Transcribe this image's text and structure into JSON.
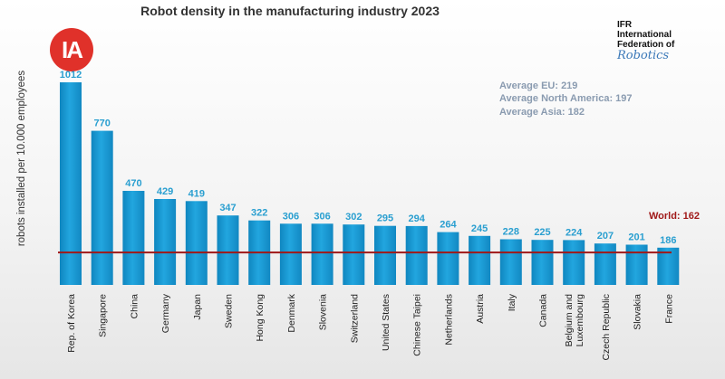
{
  "logo": {
    "text": "IA"
  },
  "ifr_logo": {
    "line1": "IFR",
    "line2": "International",
    "line3": "Federation of",
    "line4": "Robotics"
  },
  "annotations": {
    "avg_eu": "Average EU: 219",
    "avg_na": "Average North America: 197",
    "avg_asia": "Average Asia: 182",
    "world": "World: 162"
  },
  "colors": {
    "bar": "#1a9ad2",
    "world_line": "#a01818",
    "data_label": "#2a9fd0"
  },
  "chart_data": {
    "type": "bar",
    "title": "Robot density in the manufacturing industry 2023",
    "ylabel": "robots installed per 10.000 employees",
    "xlabel": "",
    "ylim": [
      0,
      1012
    ],
    "reference_line": {
      "label": "World: 162",
      "value": 162
    },
    "categories": [
      [
        "Rep. of Korea"
      ],
      [
        "Singapore"
      ],
      [
        "China"
      ],
      [
        "Germany"
      ],
      [
        "Japan"
      ],
      [
        "Sweden"
      ],
      [
        "Hong Kong"
      ],
      [
        "Denmark"
      ],
      [
        "Slovenia"
      ],
      [
        "Switzerland"
      ],
      [
        "United States"
      ],
      [
        "Chinese Taipei"
      ],
      [
        "Netherlands"
      ],
      [
        "Austria"
      ],
      [
        "Italy"
      ],
      [
        "Canada"
      ],
      [
        "Belgium and",
        "Luxembourg"
      ],
      [
        "Czech Republic"
      ],
      [
        "Slovakia"
      ],
      [
        "France"
      ]
    ],
    "values": [
      1012,
      770,
      470,
      429,
      419,
      347,
      322,
      306,
      306,
      302,
      295,
      294,
      264,
      245,
      228,
      225,
      224,
      207,
      201,
      186
    ]
  }
}
